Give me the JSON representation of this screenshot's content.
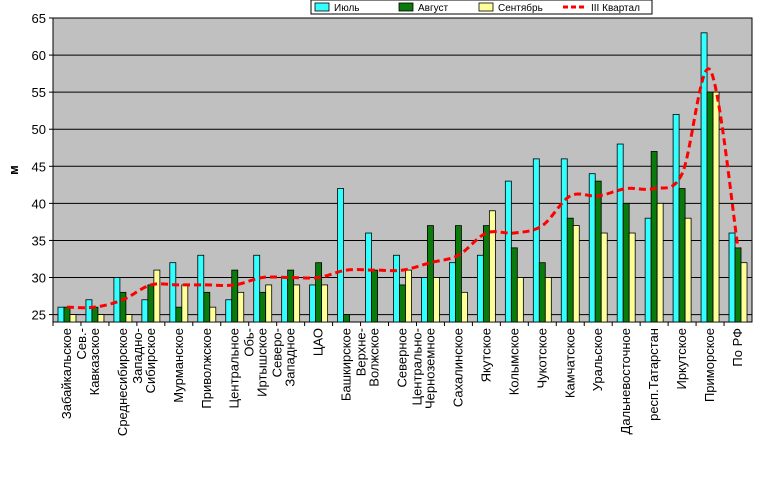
{
  "chart_data": {
    "type": "bar",
    "title": "",
    "xlabel": "",
    "ylabel": "м",
    "ylim": [
      24,
      65
    ],
    "yticks": [
      25,
      30,
      35,
      40,
      45,
      50,
      55,
      60,
      65
    ],
    "grid": true,
    "legend_position": "top-right",
    "categories": [
      "Забайкальское",
      "Сев.-\nКавказское",
      "Среднесибирское",
      "Западно-\nСибирское",
      "Мурманское",
      "Приволжское",
      "Центральное",
      "Обь-\nИртышское",
      "Северо-\nЗападное",
      "ЦАО",
      "Башкирское",
      "Верхне-\nВолжское",
      "Северное",
      "Центрально-\nЧерноземное",
      "Сахалинское",
      "Якутское",
      "Колымское",
      "Чукотское",
      "Камчатское",
      "Уральское",
      "Дальневосточное",
      "респ.Татарстан",
      "Иркутское",
      "Приморское",
      "По РФ"
    ],
    "series": [
      {
        "name": "Июль",
        "type": "bar",
        "color": "#33ffff",
        "values": [
          26,
          27,
          30,
          27,
          32,
          33,
          27,
          33,
          30,
          29,
          42,
          36,
          33,
          30,
          32,
          33,
          43,
          46,
          46,
          44,
          48,
          38,
          52,
          63,
          36
        ]
      },
      {
        "name": "Август",
        "type": "bar",
        "color": "#0a7a0a",
        "values": [
          26,
          26,
          28,
          29,
          26,
          28,
          31,
          28,
          31,
          32,
          25,
          31,
          29,
          37,
          37,
          37,
          34,
          32,
          38,
          43,
          40,
          47,
          42,
          55,
          34
        ]
      },
      {
        "name": "Сентябрь",
        "type": "bar",
        "color": "#ffff99",
        "values": [
          25,
          25,
          25,
          31,
          29,
          26,
          28,
          29,
          29,
          29,
          24,
          24,
          31,
          30,
          28,
          39,
          30,
          30,
          37,
          36,
          36,
          40,
          38,
          55,
          32
        ]
      },
      {
        "name": "III Квартал",
        "type": "line",
        "color": "#ff0000",
        "values": [
          26,
          26,
          27,
          29,
          29,
          29,
          29,
          30,
          30,
          30,
          31,
          31,
          31,
          32,
          33,
          36,
          36,
          37,
          41,
          41,
          42,
          42,
          44,
          58,
          34
        ]
      }
    ]
  }
}
